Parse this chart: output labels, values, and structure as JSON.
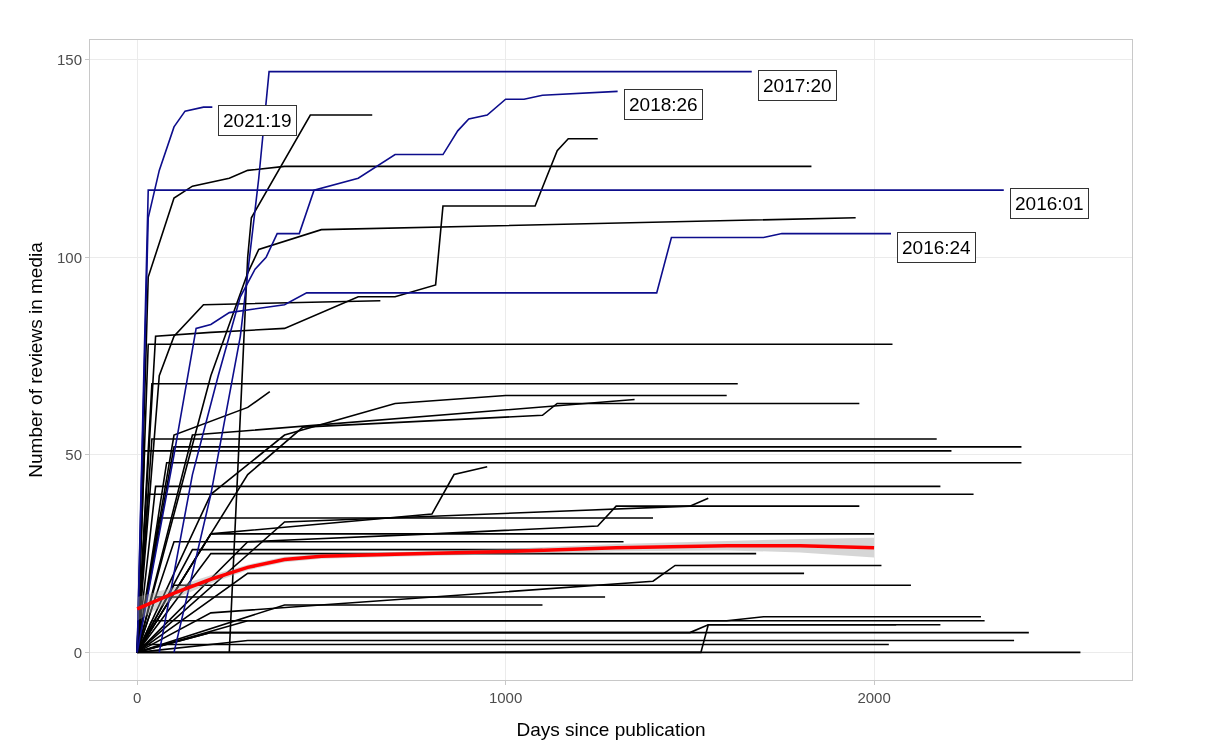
{
  "chart_data": {
    "type": "line",
    "xlabel": "Days since publication",
    "ylabel": "Number of reviews in media",
    "xlim": [
      -128,
      2700
    ],
    "ylim": [
      -7,
      155
    ],
    "xticks": [
      0,
      1000,
      2000
    ],
    "yticks": [
      0,
      50,
      100,
      150
    ],
    "grid": true,
    "marker": "none",
    "line_style": "solid",
    "series": [
      {
        "color": "#000000",
        "x": [
          0,
          30,
          100,
          150,
          250,
          300,
          400,
          1830
        ],
        "values": [
          0,
          95,
          115,
          118,
          120,
          122,
          123,
          123
        ]
      },
      {
        "color": "#000000",
        "x": [
          0,
          50,
          200,
          400,
          600,
          700,
          810,
          830,
          1080,
          1110,
          1140,
          1170,
          1250
        ],
        "values": [
          0,
          80,
          81,
          82,
          90,
          90,
          93,
          113,
          113,
          120,
          127,
          130,
          130
        ]
      },
      {
        "color": "#000000",
        "x": [
          0,
          200,
          300,
          330,
          500,
          1950
        ],
        "values": [
          0,
          70,
          96,
          102,
          107,
          110
        ]
      },
      {
        "color": "#000000",
        "x": [
          250,
          300,
          310,
          470,
          638
        ],
        "values": [
          0,
          100,
          110,
          136,
          136
        ]
      },
      {
        "color": "#000000",
        "x": [
          0,
          60,
          100,
          180,
          660
        ],
        "values": [
          0,
          70,
          80,
          88,
          89
        ]
      },
      {
        "color": "#000000",
        "x": [
          0,
          30,
          2050
        ],
        "values": [
          0,
          78,
          78
        ]
      },
      {
        "color": "#000000",
        "x": [
          0,
          40,
          1630
        ],
        "values": [
          0,
          68,
          68
        ]
      },
      {
        "color": "#000000",
        "x": [
          0,
          100,
          300,
          360
        ],
        "values": [
          0,
          55,
          62,
          66
        ]
      },
      {
        "color": "#000000",
        "x": [
          0,
          200,
          400,
          700,
          1000,
          1600
        ],
        "values": [
          0,
          40,
          55,
          63,
          65,
          65
        ]
      },
      {
        "color": "#000000",
        "x": [
          0,
          300,
          450,
          1100,
          1140,
          1960
        ],
        "values": [
          0,
          45,
          57,
          60,
          63,
          63
        ]
      },
      {
        "color": "#000000",
        "x": [
          0,
          150,
          1350
        ],
        "values": [
          0,
          55,
          64
        ]
      },
      {
        "color": "#000000",
        "x": [
          0,
          100,
          2400
        ],
        "values": [
          0,
          52,
          52
        ]
      },
      {
        "color": "#000000",
        "x": [
          0,
          20,
          2210
        ],
        "values": [
          0,
          51,
          51
        ]
      },
      {
        "color": "#000000",
        "x": [
          0,
          80,
          2400
        ],
        "values": [
          0,
          48,
          48
        ]
      },
      {
        "color": "#000000",
        "x": [
          0,
          40,
          2170
        ],
        "values": [
          0,
          54,
          54
        ]
      },
      {
        "color": "#000000",
        "x": [
          0,
          200,
          800,
          860,
          950
        ],
        "values": [
          0,
          30,
          35,
          45,
          47
        ]
      },
      {
        "color": "#000000",
        "x": [
          0,
          50,
          2180
        ],
        "values": [
          0,
          42,
          42
        ]
      },
      {
        "color": "#000000",
        "x": [
          0,
          30,
          2270
        ],
        "values": [
          0,
          40,
          40
        ]
      },
      {
        "color": "#000000",
        "x": [
          0,
          300,
          800,
          1250,
          1300,
          1960
        ],
        "values": [
          0,
          28,
          30,
          32,
          37,
          37
        ]
      },
      {
        "color": "#000000",
        "x": [
          0,
          400,
          1500,
          1550
        ],
        "values": [
          0,
          33,
          37,
          39
        ]
      },
      {
        "color": "#000000",
        "x": [
          0,
          60,
          1400
        ],
        "values": [
          0,
          34,
          34
        ]
      },
      {
        "color": "#000000",
        "x": [
          0,
          200,
          2000
        ],
        "values": [
          0,
          30,
          30
        ]
      },
      {
        "color": "#000000",
        "x": [
          0,
          100,
          1320
        ],
        "values": [
          0,
          28,
          28
        ]
      },
      {
        "color": "#000000",
        "x": [
          0,
          150,
          1100
        ],
        "values": [
          0,
          26,
          26
        ]
      },
      {
        "color": "#000000",
        "x": [
          0,
          200,
          1680
        ],
        "values": [
          0,
          25,
          25
        ]
      },
      {
        "color": "#000000",
        "x": [
          0,
          200,
          1400,
          1460,
          2020
        ],
        "values": [
          0,
          10,
          18,
          22,
          22
        ]
      },
      {
        "color": "#000000",
        "x": [
          0,
          300,
          1810
        ],
        "values": [
          0,
          20,
          20
        ]
      },
      {
        "color": "#000000",
        "x": [
          0,
          100,
          2100
        ],
        "values": [
          0,
          17,
          17
        ]
      },
      {
        "color": "#000000",
        "x": [
          0,
          50,
          1270
        ],
        "values": [
          0,
          14,
          14
        ]
      },
      {
        "color": "#000000",
        "x": [
          0,
          400,
          1100
        ],
        "values": [
          0,
          12,
          12
        ]
      },
      {
        "color": "#000000",
        "x": [
          0,
          300,
          1600,
          1700,
          2290
        ],
        "values": [
          0,
          8,
          8,
          9,
          9
        ]
      },
      {
        "color": "#000000",
        "x": [
          0,
          40,
          2300
        ],
        "values": [
          0,
          8,
          8
        ]
      },
      {
        "color": "#000000",
        "x": [
          0,
          200,
          1500,
          1550,
          2180
        ],
        "values": [
          0,
          5,
          5,
          7,
          7
        ]
      },
      {
        "color": "#000000",
        "x": [
          0,
          200,
          2420
        ],
        "values": [
          0,
          5,
          5
        ]
      },
      {
        "color": "#000000",
        "x": [
          0,
          300,
          2380
        ],
        "values": [
          0,
          3,
          3
        ]
      },
      {
        "color": "#000000",
        "x": [
          0,
          1530,
          1550,
          2060
        ],
        "values": [
          0,
          0,
          7,
          7
        ]
      },
      {
        "color": "#000000",
        "x": [
          0,
          2040
        ],
        "values": [
          2,
          2
        ]
      },
      {
        "color": "#000000",
        "x": [
          0,
          2560
        ],
        "values": [
          0,
          0
        ]
      },
      {
        "color": "#0d0d8c",
        "x": [
          0,
          30,
          60,
          100,
          130,
          180,
          204
        ],
        "values": [
          0,
          110,
          122,
          133,
          137,
          138,
          138
        ]
      },
      {
        "color": "#0d0d8c",
        "x": [
          100,
          200,
          280,
          330,
          358,
          1668
        ],
        "values": [
          0,
          40,
          80,
          120,
          147,
          147
        ]
      },
      {
        "color": "#0d0d8c",
        "x": [
          60,
          150,
          220,
          280,
          320,
          350,
          380,
          440,
          480,
          600,
          700,
          830,
          870,
          900,
          950,
          1000,
          1050,
          1100,
          1304
        ],
        "values": [
          0,
          45,
          70,
          90,
          97,
          100,
          106,
          106,
          117,
          120,
          126,
          126,
          132,
          135,
          136,
          140,
          140,
          141,
          142
        ]
      },
      {
        "color": "#0d0d8c",
        "x": [
          0,
          30,
          2352
        ],
        "values": [
          0,
          117,
          117
        ]
      },
      {
        "color": "#0d0d8c",
        "x": [
          0,
          100,
          160,
          200,
          250,
          400,
          460,
          1410,
          1450,
          1700,
          1750,
          2046
        ],
        "values": [
          0,
          50,
          82,
          83,
          86,
          88,
          91,
          91,
          105,
          105,
          106,
          106
        ]
      },
      {
        "color": "#ff0000",
        "x": [
          0,
          100,
          200,
          300,
          400,
          500,
          700,
          1000,
          1300,
          1600,
          1800,
          2000
        ],
        "values": [
          11,
          15,
          18.5,
          21.5,
          23.5,
          24.3,
          24.8,
          25.5,
          26.5,
          27,
          27,
          26.5
        ],
        "lower": [
          8,
          13.5,
          17.5,
          20.8,
          22.8,
          23.7,
          24.2,
          24.8,
          25.6,
          25.8,
          25.3,
          24
        ],
        "upper": [
          14,
          16.5,
          19.5,
          22.2,
          24.2,
          24.9,
          25.4,
          26.2,
          27.4,
          28.2,
          28.7,
          29
        ]
      }
    ],
    "annotations": [
      {
        "text": "2021:19",
        "x": 204,
        "y": 138
      },
      {
        "text": "2017:20",
        "x": 1668,
        "y": 147
      },
      {
        "text": "2018:26",
        "x": 1304,
        "y": 142
      },
      {
        "text": "2016:01",
        "x": 2352,
        "y": 117
      },
      {
        "text": "2016:24",
        "x": 2046,
        "y": 106
      }
    ]
  }
}
